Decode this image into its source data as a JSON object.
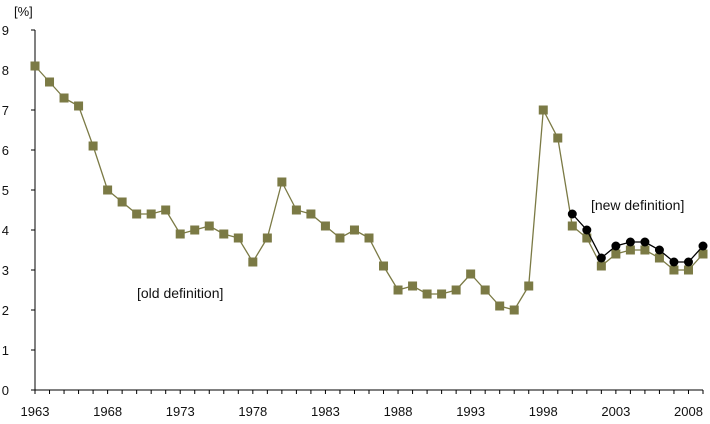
{
  "chart_data": {
    "type": "line",
    "unit_label": "[%]",
    "ylim": [
      0,
      9
    ],
    "y_ticks": [
      0,
      1,
      2,
      3,
      4,
      5,
      6,
      7,
      8,
      9
    ],
    "xlim": [
      1963,
      2009
    ],
    "x_ticks": [
      1963,
      1968,
      1973,
      1978,
      1983,
      1988,
      1993,
      1998,
      2003,
      2008
    ],
    "grid": false,
    "annotations": [
      {
        "text": "[old definition]",
        "x": 1973,
        "y": 2.3
      },
      {
        "text": "[new definition]",
        "x": 2004.5,
        "y": 4.5
      }
    ],
    "series": [
      {
        "marker": "square",
        "color": "#7b7a45",
        "x": [
          1963,
          1964,
          1965,
          1966,
          1967,
          1968,
          1969,
          1970,
          1971,
          1972,
          1973,
          1974,
          1975,
          1976,
          1977,
          1978,
          1979,
          1980,
          1981,
          1982,
          1983,
          1984,
          1985,
          1986,
          1987,
          1988,
          1989,
          1990,
          1991,
          1992,
          1993,
          1994,
          1995,
          1996,
          1997,
          1998,
          1999,
          2000,
          2001,
          2002,
          2003,
          2004,
          2005,
          2006,
          2007,
          2008,
          2009
        ],
        "values": [
          8.1,
          7.7,
          7.3,
          7.1,
          6.1,
          5.0,
          4.7,
          4.4,
          4.4,
          4.5,
          3.9,
          4.0,
          4.1,
          3.9,
          3.8,
          3.2,
          3.8,
          5.2,
          4.5,
          4.4,
          4.1,
          3.8,
          4.0,
          3.8,
          3.1,
          2.5,
          2.6,
          2.4,
          2.4,
          2.5,
          2.9,
          2.5,
          2.1,
          2.0,
          2.6,
          7.0,
          6.3,
          4.1,
          3.8,
          3.1,
          3.4,
          3.5,
          3.5,
          3.3,
          3.0,
          3.0,
          3.4
        ]
      },
      {
        "marker": "circle",
        "color": "#000000",
        "x": [
          2000,
          2001,
          2002,
          2003,
          2004,
          2005,
          2006,
          2007,
          2008,
          2009
        ],
        "values": [
          4.4,
          4.0,
          3.3,
          3.6,
          3.7,
          3.7,
          3.5,
          3.2,
          3.2,
          3.6
        ]
      }
    ]
  }
}
